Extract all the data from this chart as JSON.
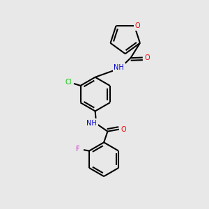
{
  "background_color": "#e8e8e8",
  "bond_color": "#000000",
  "atom_colors": {
    "O": "#ff0000",
    "N": "#0000cc",
    "Cl": "#00cc00",
    "F": "#cc00cc",
    "C": "#000000",
    "H": "#888888"
  },
  "figsize": [
    3.0,
    3.0
  ],
  "dpi": 100,
  "lw": 1.5,
  "dbl_off": 0.12,
  "dbl_shrink": 0.12,
  "fs": 7.0
}
